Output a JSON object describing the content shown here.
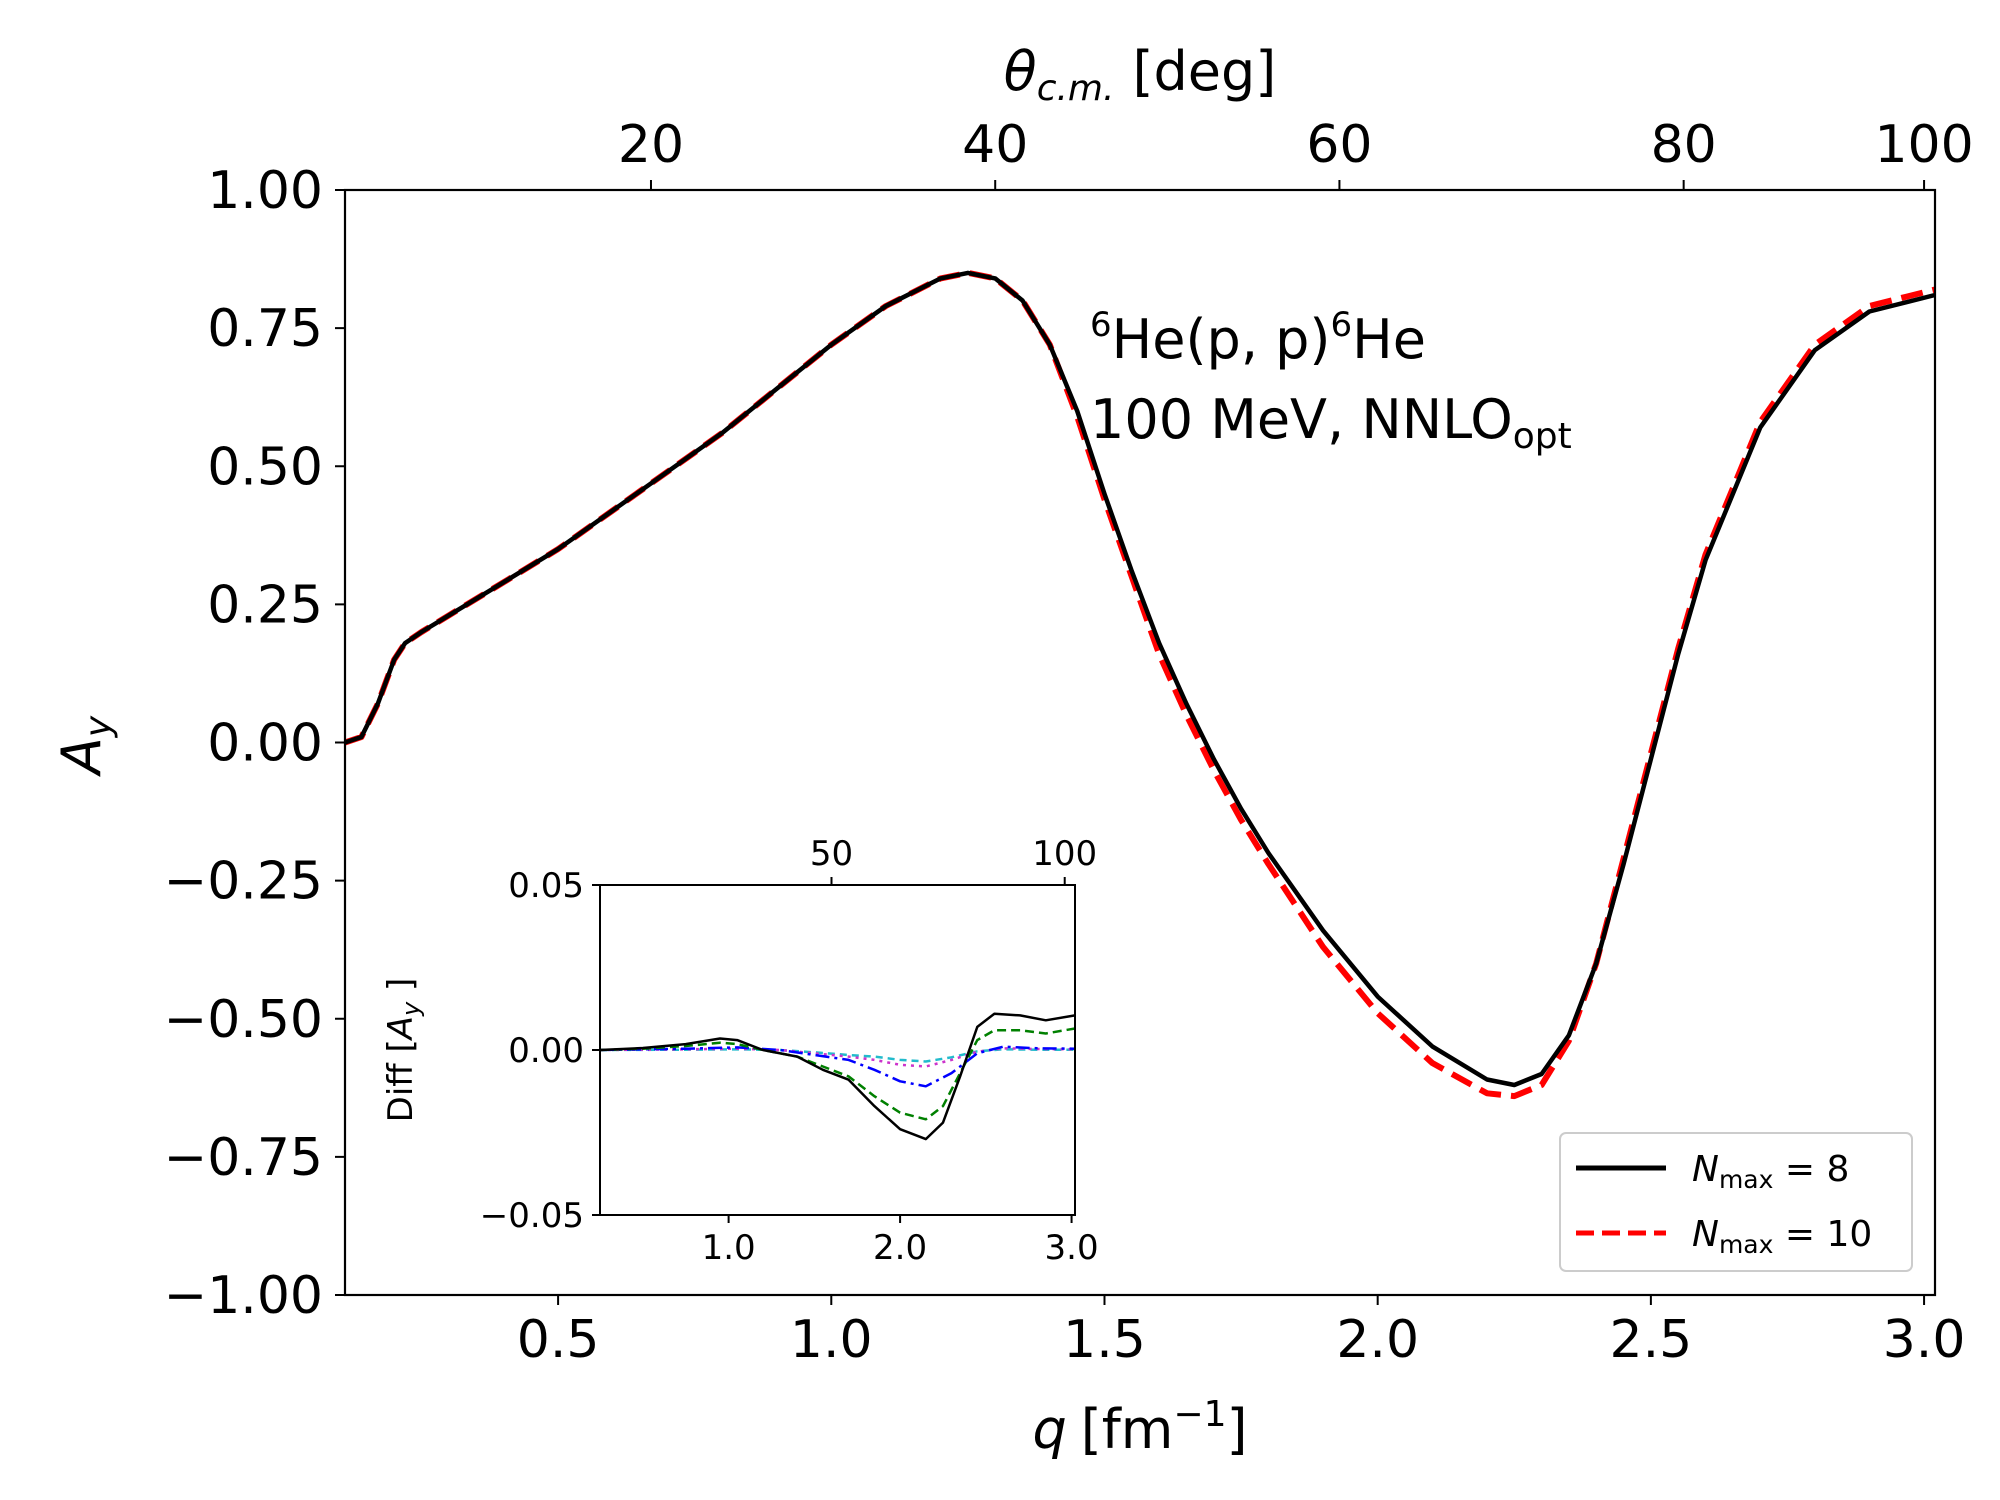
{
  "colors": {
    "nmax8": "#000000",
    "nmax10": "#ff0000",
    "inset_green": "#008000",
    "inset_blue": "#0000ff",
    "inset_magenta": "#cc33cc",
    "inset_cyan": "#22bbcc"
  },
  "chart_data": [
    {
      "type": "line",
      "role": "main",
      "annotation": {
        "line1_sup_left": "6",
        "line1_main": "He(p, p)",
        "line1_sup_right": "6",
        "line1_end": "He",
        "line2_main": "100 MeV, NNLO",
        "line2_sub": "opt"
      },
      "xlabel": {
        "symbol": "q",
        "unit_open": "[fm",
        "unit_sup": "−1",
        "unit_close": "]"
      },
      "ylabel": {
        "symbol": "A",
        "sub": "y"
      },
      "top_xlabel": {
        "symbol": "θ",
        "sub": "c.m.",
        "unit": "[deg]"
      },
      "xlim": [
        0.11,
        3.02
      ],
      "ylim": [
        -1.0,
        1.0
      ],
      "x_ticks": [
        0.5,
        1.0,
        1.5,
        2.0,
        2.5,
        3.0
      ],
      "x_tick_labels": [
        "0.5",
        "1.0",
        "1.5",
        "2.0",
        "2.5",
        "3.0"
      ],
      "y_ticks": [
        1.0,
        0.75,
        0.5,
        0.25,
        0.0,
        -0.25,
        -0.5,
        -0.75,
        -1.0
      ],
      "y_tick_labels": [
        "1.00",
        "0.75",
        "0.50",
        "0.25",
        "0.00",
        "−0.25",
        "−0.50",
        "−0.75",
        "−1.00"
      ],
      "top_ticks_q": [
        0.67,
        1.3,
        1.93,
        2.56,
        3.0
      ],
      "top_tick_labels": [
        "20",
        "40",
        "60",
        "80",
        "100"
      ],
      "legend": {
        "placement": "lower-right",
        "entries": [
          {
            "label_var": "N",
            "label_sub": "max",
            "label_rest": " = 8",
            "style": "solid",
            "series": "nmax8"
          },
          {
            "label_var": "N",
            "label_sub": "max",
            "label_rest": " = 10",
            "style": "dashed",
            "series": "nmax10"
          }
        ]
      },
      "series": [
        {
          "name": "Nmax = 8",
          "key": "nmax8",
          "x": [
            0.11,
            0.14,
            0.17,
            0.2,
            0.22,
            0.25,
            0.3,
            0.4,
            0.5,
            0.6,
            0.7,
            0.8,
            0.9,
            1.0,
            1.1,
            1.2,
            1.25,
            1.3,
            1.35,
            1.4,
            1.45,
            1.5,
            1.55,
            1.6,
            1.65,
            1.7,
            1.75,
            1.8,
            1.9,
            2.0,
            2.1,
            2.2,
            2.25,
            2.3,
            2.35,
            2.4,
            2.45,
            2.5,
            2.55,
            2.6,
            2.7,
            2.8,
            2.9,
            3.02
          ],
          "y": [
            0.0,
            0.01,
            0.07,
            0.15,
            0.18,
            0.2,
            0.23,
            0.29,
            0.35,
            0.42,
            0.49,
            0.56,
            0.64,
            0.72,
            0.79,
            0.84,
            0.85,
            0.84,
            0.8,
            0.72,
            0.6,
            0.45,
            0.31,
            0.18,
            0.07,
            -0.03,
            -0.12,
            -0.2,
            -0.34,
            -0.46,
            -0.55,
            -0.61,
            -0.62,
            -0.6,
            -0.53,
            -0.4,
            -0.22,
            -0.03,
            0.16,
            0.33,
            0.57,
            0.71,
            0.78,
            0.81
          ]
        },
        {
          "name": "Nmax = 10",
          "key": "nmax10",
          "x": [
            0.11,
            0.14,
            0.17,
            0.2,
            0.22,
            0.25,
            0.3,
            0.4,
            0.5,
            0.6,
            0.7,
            0.8,
            0.9,
            1.0,
            1.1,
            1.2,
            1.25,
            1.3,
            1.35,
            1.4,
            1.45,
            1.5,
            1.55,
            1.6,
            1.65,
            1.7,
            1.75,
            1.8,
            1.9,
            2.0,
            2.1,
            2.2,
            2.25,
            2.3,
            2.35,
            2.4,
            2.45,
            2.5,
            2.55,
            2.6,
            2.7,
            2.8,
            2.9,
            3.02
          ],
          "y": [
            0.0,
            0.01,
            0.07,
            0.15,
            0.18,
            0.2,
            0.23,
            0.29,
            0.35,
            0.42,
            0.49,
            0.56,
            0.64,
            0.72,
            0.79,
            0.84,
            0.85,
            0.84,
            0.8,
            0.72,
            0.59,
            0.44,
            0.3,
            0.16,
            0.05,
            -0.05,
            -0.14,
            -0.22,
            -0.37,
            -0.49,
            -0.58,
            -0.635,
            -0.64,
            -0.62,
            -0.54,
            -0.4,
            -0.21,
            -0.02,
            0.17,
            0.34,
            0.58,
            0.72,
            0.79,
            0.82
          ]
        }
      ]
    },
    {
      "type": "line",
      "role": "inset",
      "ylabel": {
        "prefix": "Diff [",
        "symbol": "A",
        "sub": "y",
        "suffix": " ]"
      },
      "xlim": [
        0.25,
        3.02
      ],
      "ylim": [
        -0.05,
        0.05
      ],
      "x_ticks": [
        1.0,
        2.0,
        3.0
      ],
      "x_tick_labels": [
        "1.0",
        "2.0",
        "3.0"
      ],
      "y_ticks": [
        0.05,
        0.0,
        -0.05
      ],
      "y_tick_labels": [
        "0.05",
        "0.00",
        "−0.05"
      ],
      "top_ticks_q": [
        1.6,
        2.96
      ],
      "top_tick_labels": [
        "50",
        "100"
      ],
      "series": [
        {
          "name": "black solid",
          "key": "nmax8",
          "dash": "",
          "x": [
            0.25,
            0.5,
            0.75,
            0.95,
            1.05,
            1.2,
            1.4,
            1.55,
            1.7,
            1.85,
            2.0,
            2.15,
            2.25,
            2.35,
            2.45,
            2.55,
            2.7,
            2.85,
            3.02
          ],
          "y": [
            0.0,
            0.0006,
            0.0018,
            0.0035,
            0.003,
            0.0,
            -0.002,
            -0.006,
            -0.009,
            -0.017,
            -0.024,
            -0.027,
            -0.022,
            -0.008,
            0.007,
            0.011,
            0.0105,
            0.009,
            0.0105
          ]
        },
        {
          "name": "green dashed",
          "key": "inset_green",
          "dash": "9,5",
          "x": [
            0.25,
            0.5,
            0.75,
            0.95,
            1.05,
            1.2,
            1.4,
            1.55,
            1.7,
            1.85,
            2.0,
            2.15,
            2.25,
            2.35,
            2.45,
            2.55,
            2.7,
            2.85,
            3.02
          ],
          "y": [
            0.0,
            0.0004,
            0.0012,
            0.0022,
            0.0018,
            0.0,
            -0.002,
            -0.005,
            -0.008,
            -0.014,
            -0.019,
            -0.021,
            -0.017,
            -0.007,
            0.003,
            0.006,
            0.006,
            0.005,
            0.0065
          ]
        },
        {
          "name": "blue dash-dot",
          "key": "inset_blue",
          "dash": "14,5,3,5",
          "x": [
            0.25,
            0.75,
            1.05,
            1.3,
            1.5,
            1.7,
            1.85,
            2.0,
            2.15,
            2.3,
            2.45,
            2.6,
            2.8,
            3.02
          ],
          "y": [
            0.0,
            0.0004,
            0.0008,
            0.0,
            -0.0015,
            -0.003,
            -0.006,
            -0.0095,
            -0.011,
            -0.007,
            -0.001,
            0.001,
            0.0005,
            0.0004
          ]
        },
        {
          "name": "magenta dotted",
          "key": "inset_magenta",
          "dash": "3,5",
          "x": [
            0.25,
            0.75,
            1.05,
            1.3,
            1.5,
            1.7,
            1.85,
            2.0,
            2.15,
            2.3,
            2.45,
            2.6,
            2.8,
            3.02
          ],
          "y": [
            0.0,
            0.0002,
            0.0004,
            0.0,
            -0.001,
            -0.002,
            -0.003,
            -0.0045,
            -0.005,
            -0.003,
            -0.0005,
            0.0005,
            0.0003,
            0.0002
          ]
        },
        {
          "name": "cyan dashed",
          "key": "inset_cyan",
          "dash": "7,5",
          "x": [
            0.25,
            0.75,
            1.05,
            1.3,
            1.5,
            1.7,
            1.85,
            2.0,
            2.15,
            2.3,
            2.45,
            2.6,
            2.8,
            3.02
          ],
          "y": [
            0.0,
            0.0001,
            0.0002,
            0.0,
            -0.0007,
            -0.0015,
            -0.002,
            -0.003,
            -0.0035,
            -0.0022,
            -0.0004,
            0.0002,
            0.0001,
            0.0001
          ]
        }
      ]
    }
  ]
}
